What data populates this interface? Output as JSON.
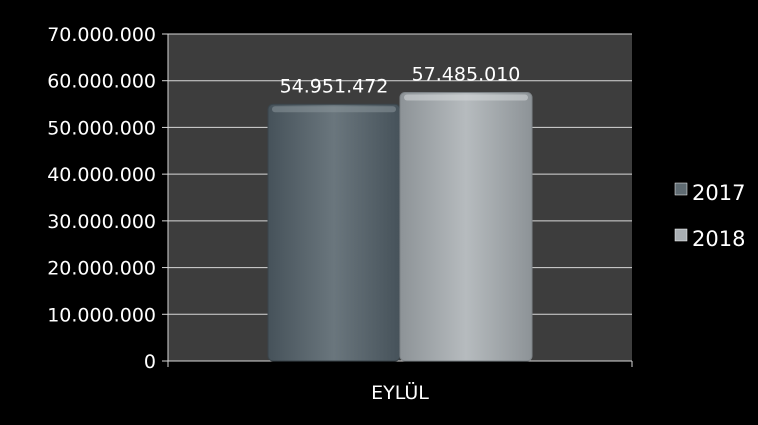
{
  "chart_data": {
    "type": "bar",
    "categories": [
      "EYLÜL"
    ],
    "series": [
      {
        "name": "2017",
        "values": [
          54951472
        ],
        "value_label": "54.951.472",
        "color": "#5f6b72"
      },
      {
        "name": "2018",
        "values": [
          57485010
        ],
        "value_label": "57.485.010",
        "color": "#a9afb3"
      }
    ],
    "ylim": [
      0,
      70000000
    ],
    "y_ticks": [
      "0",
      "10.000.000",
      "20.000.000",
      "30.000.000",
      "40.000.000",
      "50.000.000",
      "60.000.000",
      "70.000.000"
    ],
    "grid": true,
    "legend": "right",
    "colors": {
      "background": "#000000",
      "plot_area": "#3d3d3d",
      "text": "#ffffff",
      "gridline": "#ffffff"
    }
  }
}
